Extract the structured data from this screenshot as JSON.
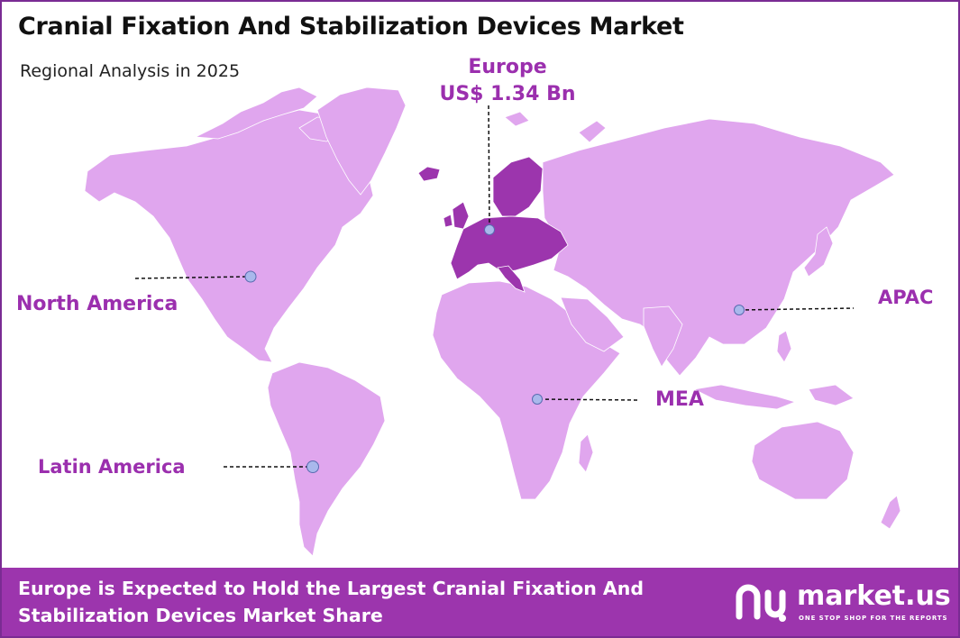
{
  "header": {
    "title": "Cranial Fixation And Stabilization Devices Market",
    "subtitle": "Regional Analysis in 2025"
  },
  "regions": {
    "north_america": {
      "label": "North America"
    },
    "latin_america": {
      "label": "Latin America"
    },
    "europe": {
      "label": "Europe",
      "value": "US$ 1.34 Bn",
      "highlighted": true
    },
    "mea": {
      "label": "MEA"
    },
    "apac": {
      "label": "APAC"
    }
  },
  "footer": {
    "text": "Europe is Expected to Hold the Largest Cranial Fixation And Stabilization Devices Market Share"
  },
  "brand": {
    "name": "market.us",
    "tagline": "ONE STOP SHOP FOR THE REPORTS",
    "logo_icon": "market-us-logo-icon"
  },
  "colors": {
    "land": "#e0a6ee",
    "europe_highlight": "#9c35ad",
    "accent": "#9b2fae",
    "marker": "#a9b8ec",
    "footer_bg": "#9c35ad"
  }
}
